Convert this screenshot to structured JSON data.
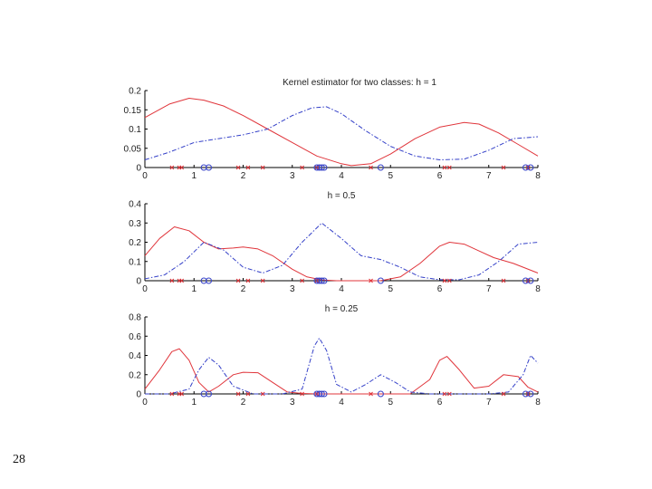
{
  "slide_number": "28",
  "colors": {
    "class_x": "#e0353b",
    "class_o": "#3440c8",
    "axis": "#000000"
  },
  "chart_data": [
    {
      "type": "line",
      "title": "Kernel estimator for two classes: h = 1",
      "xlim": [
        0,
        8
      ],
      "ylim": [
        0,
        0.2
      ],
      "xticks": [
        "0",
        "1",
        "2",
        "3",
        "4",
        "5",
        "6",
        "7",
        "8"
      ],
      "yticks": [
        "0",
        "0.05",
        "0.1",
        "0.15",
        "0.2"
      ],
      "ytick_values": [
        0,
        0.05,
        0.1,
        0.15,
        0.2
      ],
      "grid": false,
      "series": [
        {
          "style": "solid",
          "color": "#e0353b",
          "x": [
            0,
            0.5,
            0.9,
            1.2,
            1.6,
            2.0,
            2.5,
            3.0,
            3.5,
            4.0,
            4.2,
            4.6,
            5.0,
            5.5,
            6.0,
            6.5,
            6.8,
            7.2,
            7.6,
            8.0
          ],
          "y": [
            0.13,
            0.165,
            0.18,
            0.175,
            0.16,
            0.135,
            0.1,
            0.065,
            0.03,
            0.01,
            0.005,
            0.01,
            0.035,
            0.075,
            0.105,
            0.117,
            0.113,
            0.09,
            0.06,
            0.03
          ]
        },
        {
          "style": "dashdot",
          "color": "#3440c8",
          "x": [
            0,
            0.5,
            1.0,
            1.5,
            2.0,
            2.5,
            3.0,
            3.4,
            3.7,
            4.0,
            4.5,
            5.0,
            5.5,
            6.0,
            6.5,
            7.0,
            7.5,
            8.0
          ],
          "y": [
            0.02,
            0.04,
            0.065,
            0.075,
            0.085,
            0.1,
            0.135,
            0.155,
            0.158,
            0.14,
            0.095,
            0.055,
            0.03,
            0.02,
            0.022,
            0.045,
            0.075,
            0.08
          ]
        }
      ],
      "markers_x": [
        0.55,
        0.7,
        0.75,
        1.9,
        2.1,
        2.4,
        3.2,
        3.5,
        4.6,
        6.1,
        6.2,
        7.3,
        7.8
      ],
      "markers_o": [
        1.2,
        1.3,
        3.5,
        3.55,
        3.6,
        3.65,
        4.8,
        7.75,
        7.85
      ]
    },
    {
      "type": "line",
      "title": "h = 0.5",
      "xlim": [
        0,
        8
      ],
      "ylim": [
        0,
        0.4
      ],
      "xticks": [
        "0",
        "1",
        "2",
        "3",
        "4",
        "5",
        "6",
        "7",
        "8"
      ],
      "yticks": [
        "0",
        "0.1",
        "0.2",
        "0.3",
        "0.4"
      ],
      "ytick_values": [
        0,
        0.1,
        0.2,
        0.3,
        0.4
      ],
      "grid": false,
      "series": [
        {
          "style": "solid",
          "color": "#e0353b",
          "x": [
            0,
            0.3,
            0.6,
            0.9,
            1.2,
            1.5,
            1.8,
            2.0,
            2.3,
            2.6,
            3.0,
            3.3,
            3.6,
            3.9,
            4.2,
            4.5,
            4.8,
            5.2,
            5.6,
            6.0,
            6.2,
            6.5,
            6.8,
            7.1,
            7.5,
            8.0
          ],
          "y": [
            0.13,
            0.22,
            0.28,
            0.26,
            0.2,
            0.165,
            0.17,
            0.175,
            0.165,
            0.13,
            0.06,
            0.02,
            0.004,
            0.0,
            0.0,
            0.0,
            0.0,
            0.02,
            0.09,
            0.18,
            0.2,
            0.19,
            0.155,
            0.12,
            0.09,
            0.04
          ]
        },
        {
          "style": "dashdot",
          "color": "#3440c8",
          "x": [
            0,
            0.4,
            0.8,
            1.2,
            1.6,
            2.0,
            2.4,
            2.8,
            3.2,
            3.6,
            4.0,
            4.4,
            4.8,
            5.2,
            5.6,
            6.0,
            6.4,
            6.8,
            7.2,
            7.6,
            8.0
          ],
          "y": [
            0.01,
            0.03,
            0.1,
            0.2,
            0.16,
            0.07,
            0.04,
            0.08,
            0.2,
            0.3,
            0.22,
            0.13,
            0.11,
            0.07,
            0.02,
            0.005,
            0.005,
            0.03,
            0.1,
            0.19,
            0.2
          ]
        }
      ],
      "markers_x": [
        0.55,
        0.7,
        0.75,
        1.9,
        2.1,
        2.4,
        3.2,
        3.5,
        4.6,
        6.1,
        6.2,
        7.3,
        7.8
      ],
      "markers_o": [
        1.2,
        1.3,
        3.5,
        3.55,
        3.6,
        3.65,
        4.8,
        7.75,
        7.85
      ]
    },
    {
      "type": "line",
      "title": "h = 0.25",
      "xlim": [
        0,
        8
      ],
      "ylim": [
        0,
        0.8
      ],
      "xticks": [
        "0",
        "1",
        "2",
        "3",
        "4",
        "5",
        "6",
        "7",
        "8"
      ],
      "yticks": [
        "0",
        "0.2",
        "0.4",
        "0.6",
        "0.8"
      ],
      "ytick_values": [
        0,
        0.2,
        0.4,
        0.6,
        0.8
      ],
      "grid": false,
      "series": [
        {
          "style": "solid",
          "color": "#e0353b",
          "x": [
            0,
            0.3,
            0.55,
            0.7,
            0.9,
            1.1,
            1.3,
            1.5,
            1.8,
            2.0,
            2.3,
            2.6,
            2.9,
            3.2,
            3.5,
            3.8,
            4.2,
            4.6,
            5.0,
            5.4,
            5.8,
            6.0,
            6.15,
            6.4,
            6.7,
            7.0,
            7.3,
            7.6,
            7.8,
            8.0
          ],
          "y": [
            0.05,
            0.25,
            0.44,
            0.47,
            0.35,
            0.12,
            0.02,
            0.08,
            0.2,
            0.225,
            0.22,
            0.12,
            0.02,
            0.005,
            0.0,
            0.0,
            0.0,
            0.0,
            0.0,
            0.0,
            0.15,
            0.35,
            0.39,
            0.25,
            0.06,
            0.08,
            0.2,
            0.18,
            0.07,
            0.02
          ]
        },
        {
          "style": "dashdot",
          "color": "#3440c8",
          "x": [
            0,
            0.5,
            0.9,
            1.1,
            1.3,
            1.5,
            1.8,
            2.2,
            2.8,
            3.2,
            3.45,
            3.55,
            3.7,
            3.9,
            4.2,
            4.5,
            4.8,
            5.1,
            5.4,
            5.8,
            6.2,
            6.6,
            7.0,
            7.4,
            7.7,
            7.85,
            8.0
          ],
          "y": [
            0.0,
            0.0,
            0.05,
            0.25,
            0.38,
            0.3,
            0.08,
            0.0,
            0.0,
            0.05,
            0.5,
            0.58,
            0.45,
            0.1,
            0.02,
            0.1,
            0.2,
            0.12,
            0.02,
            0.0,
            0.0,
            0.0,
            0.0,
            0.02,
            0.2,
            0.4,
            0.32
          ]
        }
      ],
      "markers_x": [
        0.55,
        0.7,
        0.75,
        1.9,
        2.1,
        2.4,
        3.2,
        3.5,
        4.6,
        6.1,
        6.2,
        7.3,
        7.8
      ],
      "markers_o": [
        1.2,
        1.3,
        3.5,
        3.55,
        3.6,
        3.65,
        4.8,
        7.75,
        7.85
      ]
    }
  ]
}
